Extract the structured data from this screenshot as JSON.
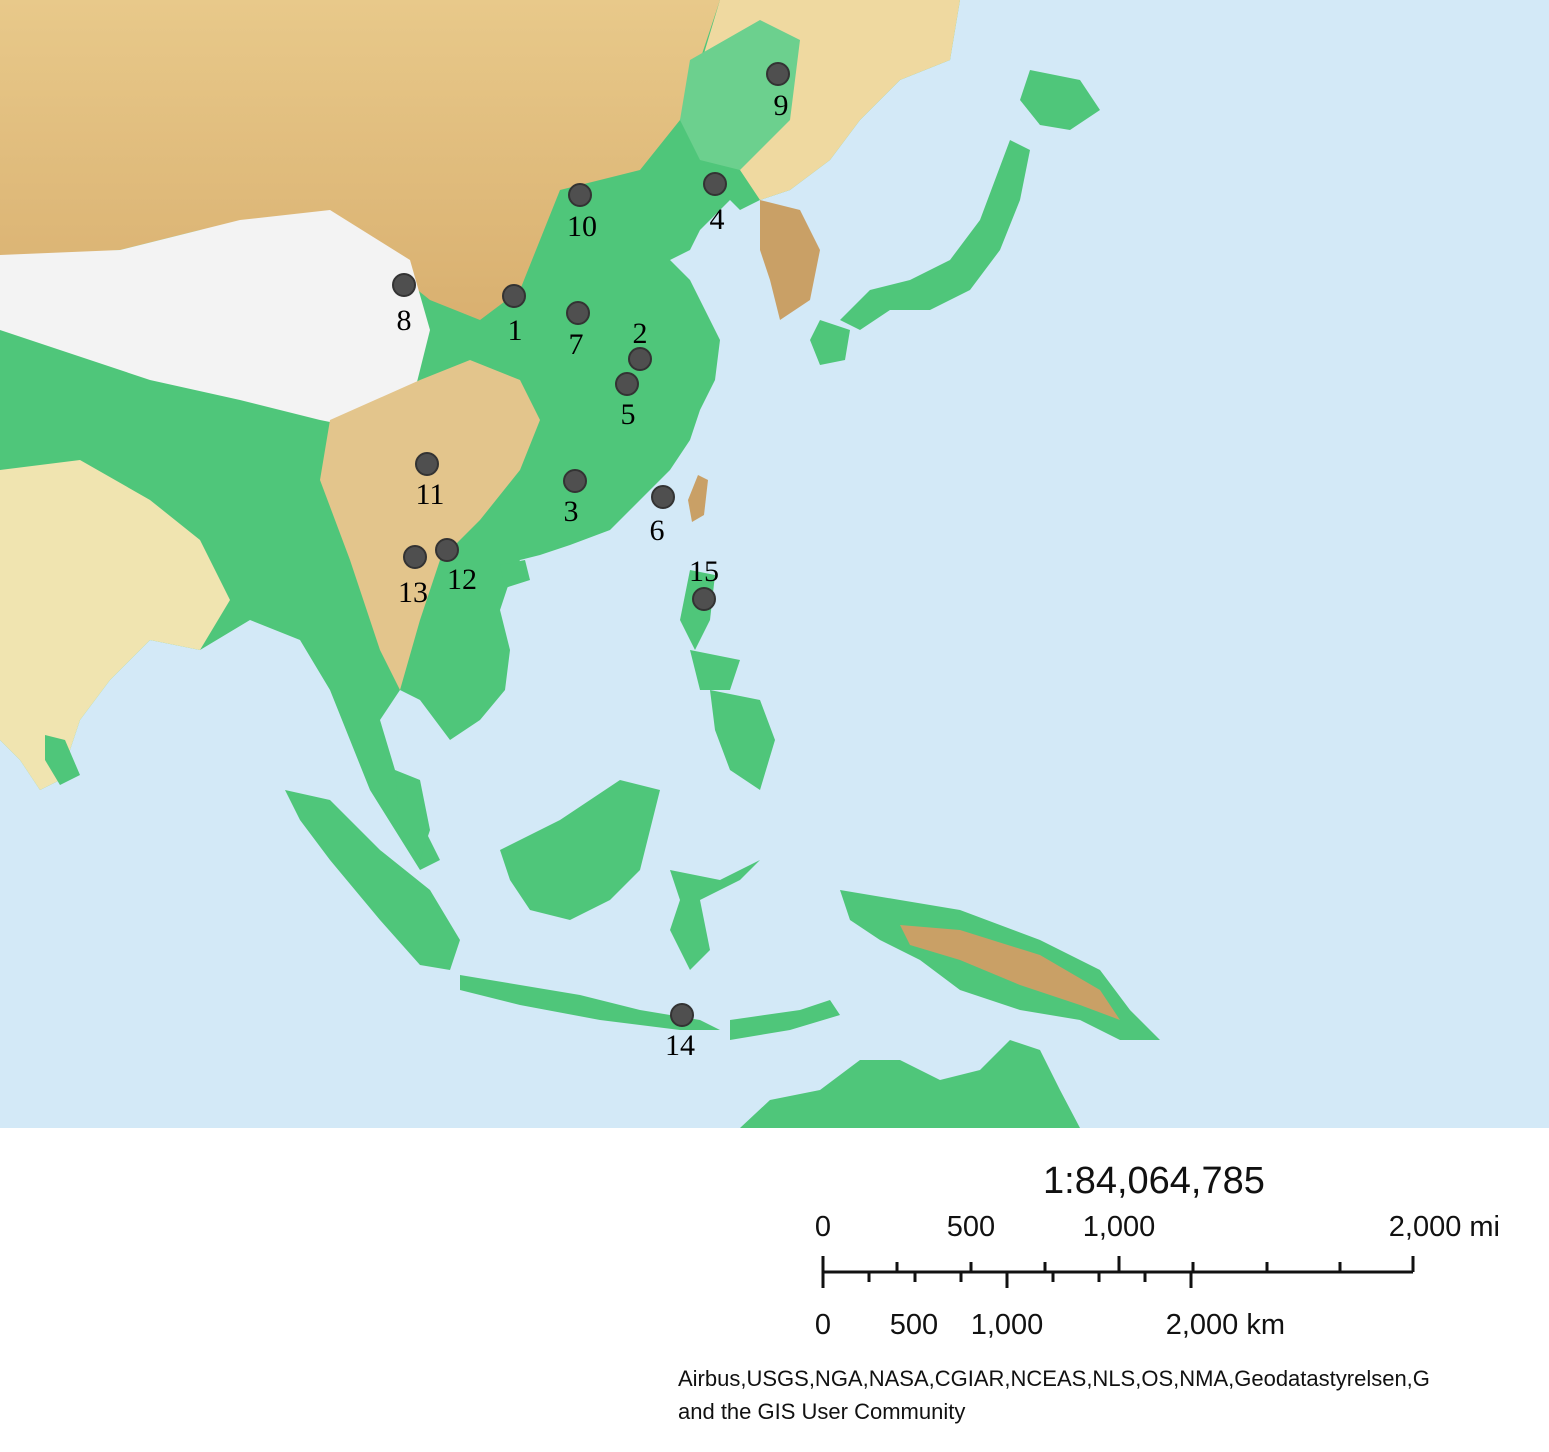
{
  "map": {
    "colors": {
      "ocean": "#d3e9f7",
      "lowland": "#4fc67a",
      "hill": "#efd9a0",
      "mountain": "#c9a066",
      "snow": "#f3f3f3",
      "marker": "#4f4f4f"
    },
    "sites": [
      {
        "label": "1"
      },
      {
        "label": "2"
      },
      {
        "label": "3"
      },
      {
        "label": "4"
      },
      {
        "label": "5"
      },
      {
        "label": "6"
      },
      {
        "label": "7"
      },
      {
        "label": "8"
      },
      {
        "label": "9"
      },
      {
        "label": "10"
      },
      {
        "label": "11"
      },
      {
        "label": "12"
      },
      {
        "label": "13"
      },
      {
        "label": "14"
      },
      {
        "label": "15"
      }
    ]
  },
  "scale": {
    "ratio": "1:84,064,785",
    "miles_ticks": [
      "0",
      "500",
      "1,000",
      "2,000 mi"
    ],
    "km_ticks": [
      "0",
      "500",
      "1,000",
      "2,000 km"
    ]
  },
  "attribution": {
    "line1": "Airbus,USGS,NGA,NASA,CGIAR,NCEAS,NLS,OS,NMA,Geodatastyrelsen,G",
    "line2": "and the GIS User Community"
  }
}
